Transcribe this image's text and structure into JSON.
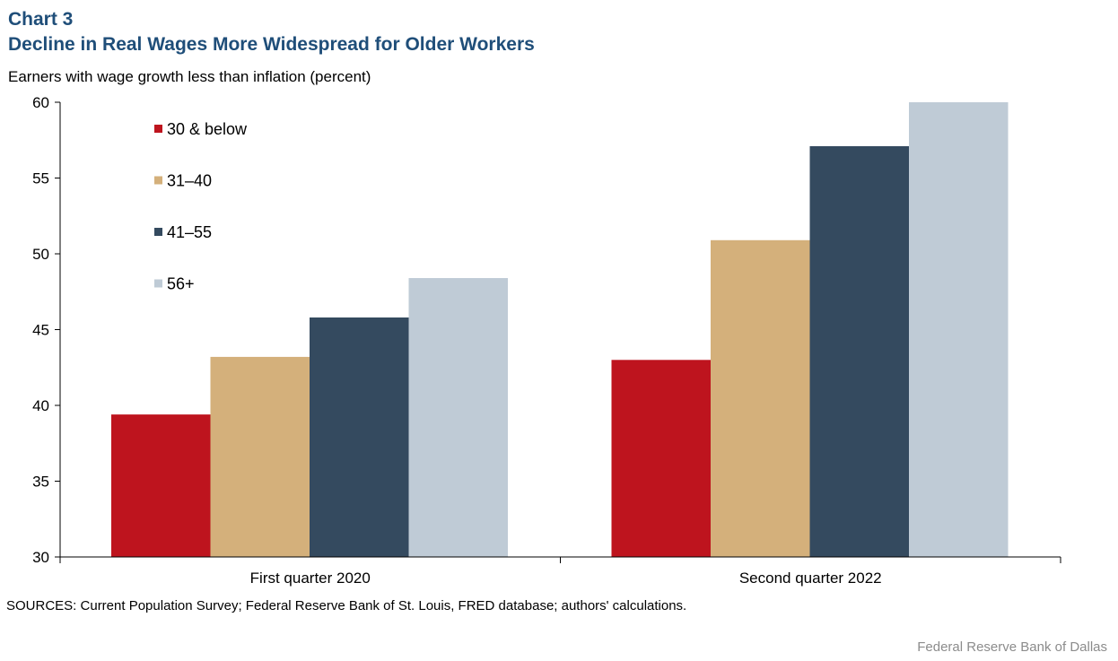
{
  "header": {
    "chart_label": "Chart 3",
    "title": "Decline in Real Wages More Widespread for Older Workers",
    "y_unit": "Earners with wage growth less than inflation (percent)"
  },
  "footer": {
    "sources": "SOURCES: Current Population Survey; Federal Reserve Bank of St. Louis, FRED database; authors' calculations.",
    "credit": "Federal Reserve Bank of Dallas"
  },
  "chart_data": {
    "type": "bar",
    "title": "Decline in Real Wages More Widespread for Older Workers",
    "ylabel": "Earners with wage growth less than inflation (percent)",
    "categories": [
      "First quarter 2020",
      "Second quarter 2022"
    ],
    "ylim": [
      30,
      60
    ],
    "yticks": [
      "30",
      "35",
      "40",
      "45",
      "50",
      "55",
      "60"
    ],
    "grid": false,
    "legend_position": "top-left",
    "series": [
      {
        "name": "30 & below",
        "color": "#be141e",
        "values": [
          39.4,
          43.0
        ]
      },
      {
        "name": "31–40",
        "color": "#d4b07b",
        "values": [
          43.2,
          50.9
        ]
      },
      {
        "name": "41–55",
        "color": "#344a5f",
        "values": [
          45.8,
          57.1
        ]
      },
      {
        "name": "56+",
        "color": "#bfcbd6",
        "values": [
          48.4,
          60.0
        ]
      }
    ]
  }
}
